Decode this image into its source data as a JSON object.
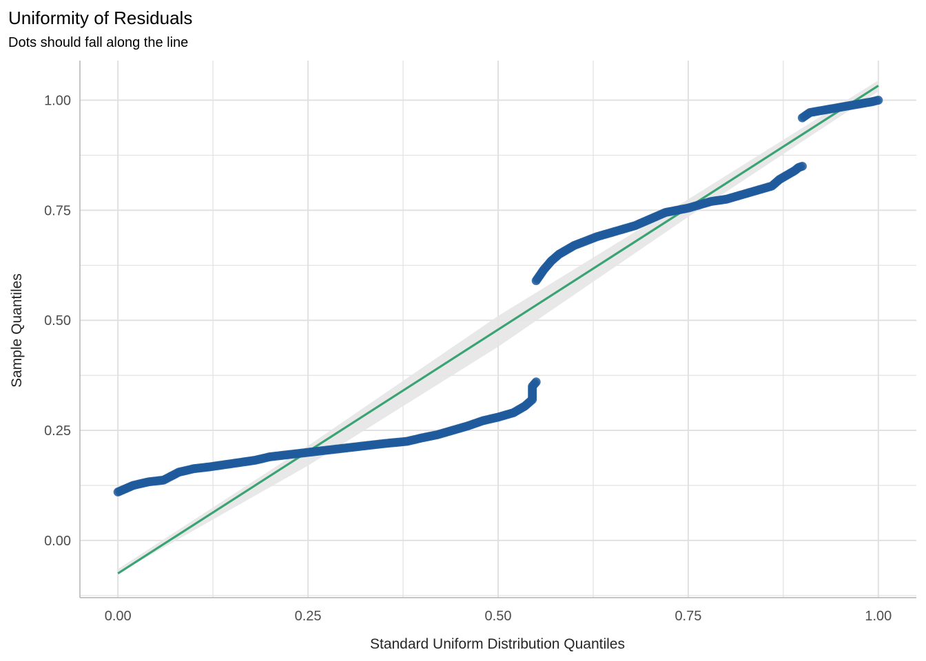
{
  "chart_data": {
    "type": "scatter",
    "title": "Uniformity of Residuals",
    "subtitle": "Dots should fall along the line",
    "xlabel": "Standard Uniform Distribution Quantiles",
    "ylabel": "Sample Quantiles",
    "xlim": [
      -0.05,
      1.05
    ],
    "ylim": [
      -0.13,
      1.09
    ],
    "x_ticks": [
      "0.00",
      "0.25",
      "0.50",
      "0.75",
      "1.00"
    ],
    "y_ticks": [
      "0.00",
      "0.25",
      "0.50",
      "0.75",
      "1.00"
    ],
    "grid": true,
    "colors": {
      "points": "#1f5a9c",
      "reference_line": "#3aa373",
      "confidence_band": "#e6e6e6",
      "grid": "#e1e1e1",
      "axis": "#b3b3b3"
    },
    "reference_line": {
      "x": [
        0.0,
        1.0
      ],
      "y": [
        -0.075,
        1.033
      ]
    },
    "confidence_band": {
      "x": [
        0.0,
        0.25,
        0.5,
        0.75,
        1.0
      ],
      "lower": [
        -0.075,
        0.17,
        0.44,
        0.735,
        1.02
      ],
      "upper": [
        -0.065,
        0.215,
        0.51,
        0.775,
        1.045
      ]
    },
    "series": [
      {
        "x": [
          0.0,
          0.02,
          0.04,
          0.06,
          0.08,
          0.1,
          0.12,
          0.14,
          0.16,
          0.18,
          0.2,
          0.25,
          0.3,
          0.35,
          0.38,
          0.4,
          0.42,
          0.44,
          0.46,
          0.48,
          0.5,
          0.52,
          0.535,
          0.545,
          0.545,
          0.55
        ],
        "y": [
          0.11,
          0.125,
          0.133,
          0.137,
          0.155,
          0.163,
          0.167,
          0.172,
          0.177,
          0.182,
          0.19,
          0.2,
          0.21,
          0.22,
          0.225,
          0.233,
          0.24,
          0.25,
          0.26,
          0.272,
          0.28,
          0.29,
          0.305,
          0.32,
          0.35,
          0.36
        ]
      },
      {
        "x": [
          0.55,
          0.56,
          0.57,
          0.58,
          0.6,
          0.63,
          0.65,
          0.68,
          0.7,
          0.72,
          0.75,
          0.78,
          0.8,
          0.82,
          0.84,
          0.86,
          0.87,
          0.88,
          0.89,
          0.895,
          0.9
        ],
        "y": [
          0.59,
          0.615,
          0.635,
          0.65,
          0.67,
          0.69,
          0.7,
          0.715,
          0.73,
          0.745,
          0.755,
          0.77,
          0.775,
          0.785,
          0.795,
          0.805,
          0.82,
          0.83,
          0.84,
          0.847,
          0.85
        ]
      },
      {
        "x": [
          0.9,
          0.91,
          0.93,
          0.95,
          0.97,
          0.99,
          1.0
        ],
        "y": [
          0.96,
          0.972,
          0.978,
          0.984,
          0.99,
          0.996,
          1.0
        ]
      }
    ]
  }
}
